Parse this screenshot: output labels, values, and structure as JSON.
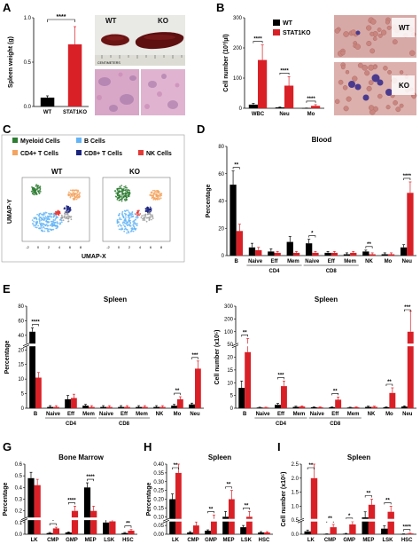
{
  "figure": {
    "panel_letters": [
      "A",
      "B",
      "C",
      "D",
      "E",
      "F",
      "G",
      "H",
      "I"
    ],
    "photo_labels": {
      "wt": "WT",
      "ko": "KO",
      "ruler": "CENTIMETERS"
    },
    "histo_labels": {
      "wt": "WT",
      "ko": "KO"
    },
    "umap": {
      "legend": [
        {
          "label": "Myeloid Cells",
          "color": "#2e7d32"
        },
        {
          "label": "B Cells",
          "color": "#64b5f6"
        },
        {
          "label": "CD4+ T Cells",
          "color": "#f4a460"
        },
        {
          "label": "CD8+ T Cells",
          "color": "#1a237e"
        },
        {
          "label": "NK Cells",
          "color": "#e53935"
        }
      ],
      "plot_titles": [
        "WT",
        "KO"
      ],
      "xlabel": "UMAP-X",
      "ylabel": "UMAP-Y"
    },
    "colors": {
      "wt": "#000000",
      "ko": "#d92027"
    }
  },
  "chart_data": [
    {
      "id": "A",
      "type": "bar",
      "categories": [
        "WT",
        "STAT1KO"
      ],
      "values": [
        0.1,
        0.7
      ],
      "errors": [
        0.02,
        0.2
      ],
      "ylabel": "Spleen weight (g)",
      "ylim": [
        0,
        1.0
      ],
      "yticks": [
        "0.0",
        "0.5",
        "1.0"
      ],
      "sig": "****"
    },
    {
      "id": "B",
      "type": "bar",
      "categories": [
        "WBC",
        "Neu",
        "Mo"
      ],
      "series": [
        {
          "name": "WT",
          "values": [
            12,
            3,
            0.5
          ],
          "errors": [
            4,
            1,
            0.3
          ]
        },
        {
          "name": "STAT1KO",
          "values": [
            160,
            75,
            8
          ],
          "errors": [
            50,
            30,
            4
          ]
        }
      ],
      "ylabel": "Cell number (10³/µl)",
      "ylim": [
        0,
        300
      ],
      "yticks": [
        "0",
        "100",
        "200",
        "300"
      ],
      "sig": [
        "****",
        "****",
        "****"
      ]
    },
    {
      "id": "D",
      "type": "bar",
      "title": "Blood",
      "categories": [
        "B",
        "Naive",
        "Eff",
        "Mem",
        "Naive",
        "Eff",
        "Mem",
        "NK",
        "Mo",
        "Neu"
      ],
      "groups": [
        {
          "label": "CD4",
          "from": 1,
          "to": 3
        },
        {
          "label": "CD8",
          "from": 4,
          "to": 6
        }
      ],
      "series": [
        {
          "name": "WT",
          "values": [
            52,
            6,
            3,
            10,
            9,
            2,
            1,
            3,
            1,
            6
          ],
          "errors": [
            10,
            3,
            2,
            4,
            3,
            1,
            1,
            1,
            1,
            2
          ]
        },
        {
          "name": "STAT1KO",
          "values": [
            18,
            4,
            2,
            2,
            2,
            2,
            2,
            1,
            1,
            46
          ],
          "errors": [
            5,
            2,
            1,
            1,
            1,
            1,
            1,
            1,
            1,
            8
          ]
        }
      ],
      "ylabel": "Percentage",
      "ylim": [
        0,
        80
      ],
      "yticks": [
        "0",
        "20",
        "40",
        "60",
        "80"
      ],
      "sig": [
        {
          "i": 0,
          "t": "**"
        },
        {
          "i": 4,
          "t": "*"
        },
        {
          "i": 7,
          "t": "**"
        },
        {
          "i": 9,
          "t": "****"
        }
      ]
    },
    {
      "id": "E",
      "type": "bar",
      "title": "Spleen",
      "categories": [
        "B",
        "Naive",
        "Eff",
        "Mem",
        "Naive",
        "Eff",
        "Mem",
        "NK",
        "Mo",
        "Neu"
      ],
      "groups": [
        {
          "label": "CD4",
          "from": 1,
          "to": 3
        },
        {
          "label": "CD8",
          "from": 4,
          "to": 6
        }
      ],
      "series": [
        {
          "name": "WT",
          "values": [
            60,
            1,
            7,
            2,
            1,
            1,
            1,
            1,
            2,
            3
          ],
          "errors": [
            3,
            1,
            3,
            1,
            1,
            1,
            1,
            1,
            1,
            1
          ]
        },
        {
          "name": "STAT1KO",
          "values": [
            24,
            1,
            8,
            1,
            1,
            1,
            1,
            1,
            7,
            31
          ],
          "errors": [
            4,
            1,
            3,
            1,
            1,
            1,
            1,
            1,
            2,
            6
          ]
        }
      ],
      "ylabel": "Percentage",
      "ylim": [
        0,
        80
      ],
      "yticks": [
        "0",
        "5",
        "10",
        "15",
        "20",
        "40",
        "60",
        "80"
      ],
      "sig": [
        {
          "i": 0,
          "t": "****"
        },
        {
          "i": 8,
          "t": "**"
        },
        {
          "i": 9,
          "t": "***"
        }
      ]
    },
    {
      "id": "F",
      "type": "bar",
      "title": "Spleen",
      "categories": [
        "B",
        "Naive",
        "Eff",
        "Mem",
        "Naive",
        "Eff",
        "Mem",
        "NK",
        "Mo",
        "Neu"
      ],
      "groups": [
        {
          "label": "CD4",
          "from": 1,
          "to": 3
        },
        {
          "label": "CD8",
          "from": 4,
          "to": 6
        }
      ],
      "series": [
        {
          "name": "WT",
          "values": [
            60,
            2,
            10,
            4,
            3,
            3,
            2,
            4,
            3,
            5
          ],
          "errors": [
            20,
            1,
            4,
            2,
            1,
            1,
            1,
            2,
            1,
            2
          ]
        },
        {
          "name": "STAT1KO",
          "values": [
            165,
            2,
            65,
            5,
            3,
            25,
            3,
            4,
            45,
            225
          ],
          "errors": [
            40,
            1,
            15,
            2,
            1,
            8,
            1,
            2,
            15,
            60
          ]
        }
      ],
      "ylabel": "Cell number (x10⁵)",
      "ylim": [
        0,
        300
      ],
      "yticks": [
        "0",
        "5",
        "10",
        "15",
        "20",
        "50",
        "100",
        "200",
        "300"
      ],
      "sig": [
        {
          "i": 0,
          "t": "**"
        },
        {
          "i": 2,
          "t": "***"
        },
        {
          "i": 5,
          "t": "**"
        },
        {
          "i": 8,
          "t": "**"
        },
        {
          "i": 9,
          "t": "***"
        }
      ]
    },
    {
      "id": "G",
      "type": "bar",
      "title": "Bone Marrow",
      "categories": [
        "LK",
        "CMP",
        "GMP",
        "MEP",
        "LSK",
        "HSC"
      ],
      "series": [
        {
          "name": "WT",
          "values": [
            0.48,
            0.01,
            0.015,
            0.4,
            0.1,
            0.01
          ],
          "errors": [
            0.05,
            0.005,
            0.005,
            0.04,
            0.03,
            0.005
          ]
        },
        {
          "name": "STAT1KO",
          "values": [
            0.42,
            0.05,
            0.2,
            0.2,
            0.11,
            0.03
          ],
          "errors": [
            0.05,
            0.01,
            0.04,
            0.04,
            0.02,
            0.01
          ]
        }
      ],
      "ylabel": "Percentage",
      "ylim": [
        0,
        0.6
      ],
      "yticks": [
        "0.0",
        "0.1",
        "0.2",
        "0.3",
        "0.4",
        "0.5",
        "0.6"
      ],
      "sig": [
        {
          "i": 1,
          "t": "*"
        },
        {
          "i": 2,
          "t": "****"
        },
        {
          "i": 3,
          "t": "****"
        },
        {
          "i": 5,
          "t": "**"
        }
      ]
    },
    {
      "id": "H",
      "type": "bar",
      "title": "Spleen",
      "categories": [
        "LK",
        "CMP",
        "GMP",
        "MEP",
        "LSK",
        "HSC"
      ],
      "series": [
        {
          "name": "WT",
          "values": [
            0.2,
            0.01,
            0.02,
            0.1,
            0.04,
            0.01
          ],
          "errors": [
            0.03,
            0.005,
            0.005,
            0.03,
            0.01,
            0.005
          ]
        },
        {
          "name": "STAT1KO",
          "values": [
            0.35,
            0.05,
            0.08,
            0.2,
            0.1,
            0.01
          ],
          "errors": [
            0.05,
            0.02,
            0.03,
            0.05,
            0.03,
            0.005
          ]
        }
      ],
      "ylabel": "Percentage",
      "ylim": [
        0,
        0.4
      ],
      "yticks": [
        "0.00",
        "0.05",
        "0.10",
        "0.15",
        "0.20",
        "0.25",
        "0.30",
        "0.35",
        "0.40"
      ],
      "sig": [
        {
          "i": 0,
          "t": "**"
        },
        {
          "i": 2,
          "t": "**"
        },
        {
          "i": 3,
          "t": "**"
        },
        {
          "i": 4,
          "t": "**"
        }
      ]
    },
    {
      "id": "I",
      "type": "bar",
      "title": "Spleen",
      "categories": [
        "LK",
        "CMP",
        "GMP",
        "MEP",
        "LSK",
        "HSC"
      ],
      "series": [
        {
          "name": "WT",
          "values": [
            0.1,
            0.01,
            0.02,
            0.6,
            0.2,
            0.01
          ],
          "errors": [
            0.05,
            0.005,
            0.01,
            0.2,
            0.1,
            0.005
          ]
        },
        {
          "name": "STAT1KO",
          "values": [
            2.0,
            0.25,
            0.35,
            1.05,
            0.8,
            0.03
          ],
          "errors": [
            0.5,
            0.1,
            0.1,
            0.2,
            0.2,
            0.01
          ]
        }
      ],
      "ylabel": "Cell number (x10⁵)",
      "ylim": [
        0,
        2.5
      ],
      "yticks": [
        "0.0",
        "0.5",
        "1.0",
        "1.5",
        "2.0",
        "2.5"
      ],
      "sig": [
        {
          "i": 0,
          "t": "**"
        },
        {
          "i": 1,
          "t": "**"
        },
        {
          "i": 2,
          "t": "*"
        },
        {
          "i": 3,
          "t": "**"
        },
        {
          "i": 4,
          "t": "**"
        },
        {
          "i": 5,
          "t": "****"
        }
      ]
    }
  ]
}
